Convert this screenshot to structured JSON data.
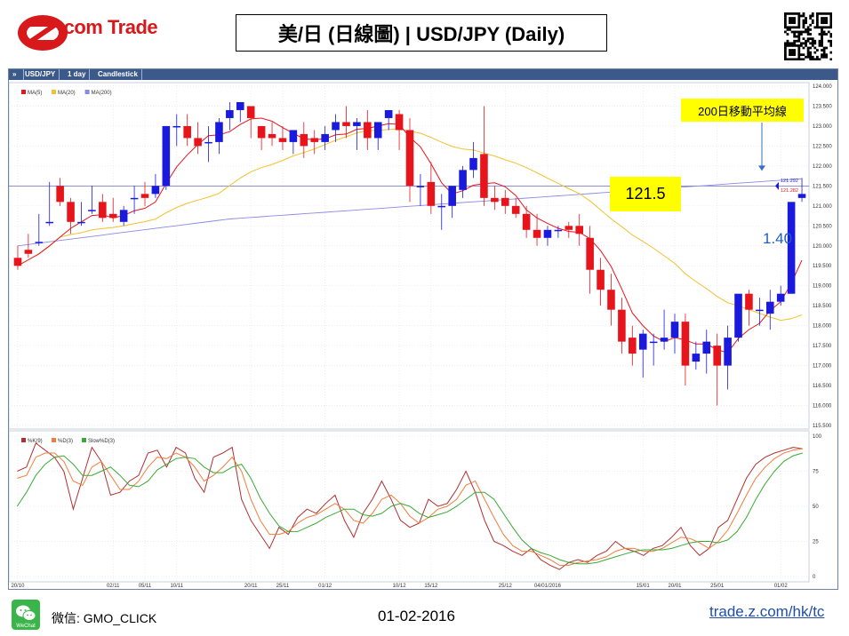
{
  "header": {
    "logo_text_z": "Z",
    "logo_text_rest": ".com Trade",
    "title": "美/日 (日線圖) | USD/JPY  (Daily)"
  },
  "toolbar": {
    "symbol": "USD/JPY",
    "period": "1 day",
    "style": "Candlestick"
  },
  "legend_main": [
    "MA(5)",
    "MA(20)",
    "MA(200)"
  ],
  "legend_osc": [
    "%K(9)",
    "%D(3)",
    "Slow%D(3)"
  ],
  "annotations": {
    "ma200_label": "200日移動平均線",
    "level_label": "121.5",
    "move_label": "1.40"
  },
  "price_tags": {
    "upper": "121.292",
    "lower": "121.282"
  },
  "footer": {
    "wechat": "微信: GMO_CLICK",
    "date": "01-02-2016",
    "url": "trade.z.com/hk/tc",
    "wechat_icon_text": "WeChat"
  },
  "colors": {
    "up": "#1a1adf",
    "down": "#e8141b",
    "ma5": "#e8141b",
    "ma20": "#f2c12e",
    "ma200": "#8a8ae6",
    "k": "#b03030",
    "d": "#f07d3c",
    "slowd": "#3aaa35"
  },
  "chart_data": [
    {
      "type": "candlestick",
      "title": "",
      "ylim": [
        115.5,
        124.0
      ],
      "y_ticks": [
        "124.000",
        "123.500",
        "123.000",
        "122.500",
        "122.000",
        "121.500",
        "121.000",
        "120.500",
        "120.000",
        "119.500",
        "119.000",
        "118.500",
        "118.000",
        "117.500",
        "117.000",
        "116.500",
        "116.000",
        "115.500"
      ],
      "x_ticks": [
        "20/10",
        "02/11",
        "05/11",
        "10/11",
        "20/11",
        "25/11",
        "01/12",
        "10/12",
        "15/12",
        "25/12",
        "04/01/2016",
        "15/01",
        "20/01",
        "25/01",
        "01/02"
      ],
      "candles": [
        [
          119.7,
          120.0,
          119.5,
          119.4
        ],
        [
          119.9,
          120.3,
          119.8,
          119.7
        ],
        [
          120.1,
          120.8,
          120.1,
          120.0
        ],
        [
          120.6,
          121.6,
          120.6,
          120.5
        ],
        [
          121.5,
          121.7,
          121.1,
          121.0
        ],
        [
          121.1,
          121.2,
          120.6,
          120.3
        ],
        [
          120.6,
          121.1,
          120.6,
          120.5
        ],
        [
          120.9,
          121.5,
          120.9,
          120.8
        ],
        [
          121.1,
          121.3,
          120.7,
          120.6
        ],
        [
          120.8,
          121.2,
          120.7,
          120.6
        ],
        [
          120.6,
          121.0,
          120.9,
          120.5
        ],
        [
          121.2,
          121.5,
          121.2,
          120.8
        ],
        [
          121.3,
          121.6,
          121.2,
          121.0
        ],
        [
          121.3,
          121.8,
          121.5,
          121.2
        ],
        [
          121.5,
          123.0,
          123.0,
          121.4
        ],
        [
          123.0,
          123.3,
          123.0,
          122.5
        ],
        [
          123.0,
          123.3,
          122.7,
          122.5
        ],
        [
          122.7,
          123.1,
          122.5,
          122.3
        ],
        [
          122.6,
          123.0,
          122.6,
          122.1
        ],
        [
          122.6,
          123.2,
          123.1,
          122.3
        ],
        [
          123.2,
          123.6,
          123.4,
          122.9
        ],
        [
          123.4,
          123.6,
          123.6,
          123.1
        ],
        [
          123.5,
          123.5,
          123.2,
          122.7
        ],
        [
          123.0,
          123.0,
          122.7,
          122.4
        ],
        [
          122.8,
          123.1,
          122.7,
          122.5
        ],
        [
          122.7,
          123.0,
          122.6,
          122.4
        ],
        [
          122.6,
          122.8,
          122.9,
          122.3
        ],
        [
          122.8,
          123.1,
          122.5,
          122.2
        ],
        [
          122.7,
          122.9,
          122.6,
          122.3
        ],
        [
          122.6,
          123.0,
          122.8,
          122.4
        ],
        [
          122.9,
          123.3,
          123.1,
          122.6
        ],
        [
          123.1,
          123.5,
          123.0,
          122.7
        ],
        [
          123.0,
          123.2,
          123.1,
          122.4
        ],
        [
          123.1,
          123.4,
          122.7,
          122.4
        ],
        [
          122.7,
          123.0,
          123.1,
          122.4
        ],
        [
          123.2,
          123.4,
          123.4,
          122.9
        ],
        [
          123.3,
          123.4,
          122.9,
          122.4
        ],
        [
          122.9,
          123.2,
          121.5,
          121.1
        ],
        [
          121.5,
          121.8,
          121.5,
          121.0
        ],
        [
          121.6,
          122.1,
          121.0,
          120.8
        ],
        [
          121.0,
          121.3,
          121.0,
          120.4
        ],
        [
          121.0,
          121.5,
          121.5,
          120.7
        ],
        [
          121.4,
          122.0,
          121.9,
          121.2
        ],
        [
          121.9,
          122.6,
          122.2,
          121.7
        ],
        [
          122.3,
          123.5,
          121.2,
          121.0
        ],
        [
          121.2,
          121.5,
          121.1,
          120.9
        ],
        [
          121.2,
          121.4,
          121.0,
          120.8
        ],
        [
          121.0,
          121.2,
          120.8,
          120.7
        ],
        [
          120.8,
          121.0,
          120.4,
          120.2
        ],
        [
          120.4,
          120.8,
          120.2,
          120.0
        ],
        [
          120.2,
          120.5,
          120.4,
          120.0
        ],
        [
          120.4,
          120.5,
          120.4,
          120.2
        ],
        [
          120.5,
          120.6,
          120.4,
          120.2
        ],
        [
          120.5,
          120.8,
          120.3,
          120.0
        ],
        [
          120.2,
          120.5,
          119.4,
          118.8
        ],
        [
          119.4,
          119.7,
          118.9,
          118.5
        ],
        [
          118.9,
          119.3,
          118.4,
          118.0
        ],
        [
          118.4,
          118.7,
          117.6,
          117.3
        ],
        [
          117.7,
          118.0,
          117.3,
          117.0
        ],
        [
          117.4,
          117.9,
          117.8,
          116.7
        ],
        [
          117.6,
          117.8,
          117.6,
          117.0
        ],
        [
          117.6,
          118.4,
          117.7,
          117.4
        ],
        [
          117.7,
          118.3,
          118.1,
          117.3
        ],
        [
          118.1,
          118.3,
          117.0,
          116.5
        ],
        [
          117.1,
          117.6,
          117.3,
          116.9
        ],
        [
          117.3,
          117.9,
          117.6,
          116.8
        ],
        [
          117.5,
          117.8,
          117.0,
          116.0
        ],
        [
          117.0,
          118.0,
          117.7,
          116.4
        ],
        [
          117.7,
          118.3,
          118.8,
          117.6
        ],
        [
          118.8,
          118.9,
          118.4,
          118.0
        ],
        [
          118.4,
          118.7,
          118.4,
          118.0
        ],
        [
          118.3,
          118.9,
          118.6,
          117.9
        ],
        [
          118.6,
          119.0,
          118.8,
          118.5
        ],
        [
          118.8,
          119.1,
          121.1,
          118.8
        ],
        [
          121.2,
          121.7,
          121.3,
          121.1
        ]
      ]
    },
    {
      "type": "line",
      "title": "",
      "ylim": [
        0,
        100
      ],
      "y_ticks": [
        "100",
        "75",
        "50",
        "25",
        "0"
      ],
      "series": [
        {
          "name": "%K(9)",
          "values": [
            75,
            78,
            95,
            90,
            85,
            75,
            48,
            70,
            92,
            82,
            58,
            60,
            68,
            72,
            88,
            90,
            78,
            92,
            88,
            70,
            60,
            85,
            88,
            92,
            55,
            40,
            30,
            20,
            35,
            30,
            42,
            48,
            45,
            52,
            58,
            40,
            28,
            45,
            55,
            68,
            55,
            40,
            35,
            38,
            55,
            50,
            52,
            62,
            75,
            60,
            40,
            25,
            22,
            18,
            15,
            20,
            12,
            8,
            5,
            10,
            12,
            10,
            15,
            18,
            25,
            20,
            18,
            15,
            20,
            22,
            28,
            35,
            22,
            15,
            20,
            35,
            40,
            55,
            70,
            80,
            85,
            88,
            90,
            92,
            91
          ]
        },
        {
          "name": "%D(3)",
          "values": [
            70,
            72,
            85,
            88,
            88,
            82,
            68,
            65,
            78,
            82,
            72,
            62,
            62,
            68,
            78,
            85,
            84,
            88,
            85,
            78,
            68,
            72,
            78,
            85,
            75,
            55,
            40,
            30,
            30,
            32,
            38,
            42,
            44,
            48,
            52,
            48,
            40,
            38,
            45,
            55,
            58,
            52,
            43,
            38,
            42,
            48,
            50,
            55,
            65,
            68,
            55,
            42,
            30,
            22,
            18,
            18,
            15,
            12,
            8,
            8,
            10,
            11,
            12,
            14,
            18,
            20,
            20,
            18,
            18,
            20,
            24,
            28,
            27,
            24,
            20,
            25,
            33,
            45,
            58,
            70,
            78,
            84,
            88,
            90,
            91
          ]
        },
        {
          "name": "Slow%D(3)",
          "values": [
            50,
            60,
            72,
            80,
            85,
            86,
            80,
            72,
            72,
            75,
            78,
            72,
            65,
            64,
            68,
            76,
            80,
            84,
            85,
            84,
            78,
            74,
            74,
            78,
            80,
            70,
            56,
            45,
            36,
            32,
            32,
            35,
            38,
            42,
            45,
            48,
            48,
            44,
            43,
            45,
            50,
            52,
            50,
            45,
            42,
            44,
            46,
            50,
            55,
            60,
            60,
            55,
            45,
            35,
            26,
            20,
            17,
            15,
            12,
            10,
            9,
            9,
            10,
            12,
            14,
            16,
            18,
            19,
            19,
            19,
            20,
            22,
            24,
            25,
            25,
            24,
            26,
            32,
            42,
            55,
            66,
            75,
            82,
            86,
            88
          ]
        }
      ]
    }
  ]
}
